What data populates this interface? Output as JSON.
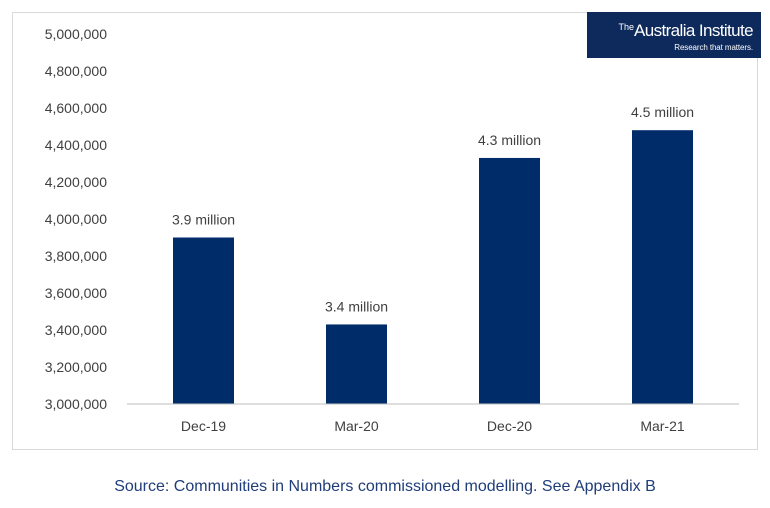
{
  "logo": {
    "the": "The",
    "name": "Australia Institute",
    "tagline": "Research that matters."
  },
  "source": "Source: Communities in Numbers commissioned modelling. See Appendix B",
  "chart_data": {
    "type": "bar",
    "title": "",
    "xlabel": "",
    "ylabel": "",
    "categories": [
      "Dec-19",
      "Mar-20",
      "Dec-20",
      "Mar-21"
    ],
    "values": [
      3900000,
      3430000,
      4330000,
      4480000
    ],
    "data_labels": [
      "3.9 million",
      "3.4 million",
      "4.3 million",
      "4.5 million"
    ],
    "ylim": [
      3000000,
      5000000
    ],
    "yticks": [
      3000000,
      3200000,
      3400000,
      3600000,
      3800000,
      4000000,
      4200000,
      4400000,
      4600000,
      4800000,
      5000000
    ],
    "ytick_labels": [
      "3,000,000",
      "3,200,000",
      "3,400,000",
      "3,600,000",
      "3,800,000",
      "4,000,000",
      "4,200,000",
      "4,400,000",
      "4,600,000",
      "4,800,000",
      "5,000,000"
    ],
    "grid": false,
    "legend": "none",
    "colors": {
      "bar": "#002d6a",
      "axis": "#bfbfbf",
      "text": "#404040"
    }
  }
}
